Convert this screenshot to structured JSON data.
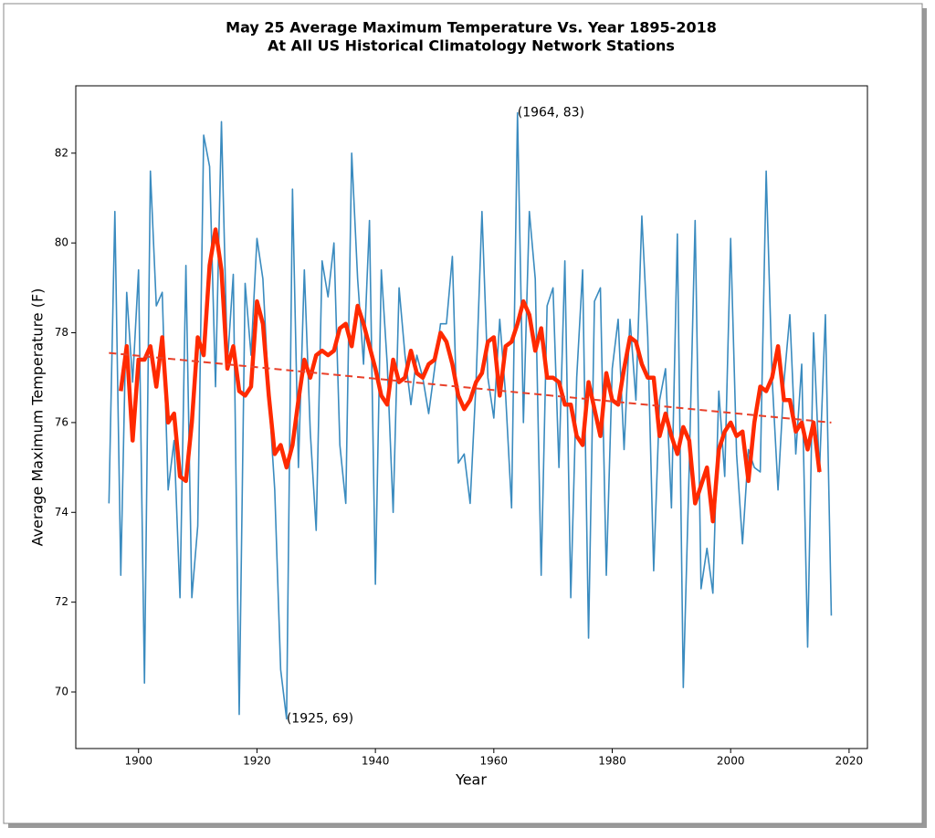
{
  "chart_data": {
    "type": "line",
    "title": "May 25 Average Maximum Temperature Vs. Year 1895-2018",
    "subtitle": "At All US Historical Climatology Network Stations",
    "x_label": "Year",
    "y_label": "Average Maximum Temperature (F)",
    "xlim": [
      1889.4,
      2023.1
    ],
    "ylim": [
      68.74,
      83.5
    ],
    "xticks": [
      1900,
      1920,
      1940,
      1960,
      1980,
      2000,
      2020
    ],
    "yticks": [
      70,
      72,
      74,
      76,
      78,
      80,
      82
    ],
    "grid": false,
    "x": [
      1895,
      1896,
      1897,
      1898,
      1899,
      1900,
      1901,
      1902,
      1903,
      1904,
      1905,
      1906,
      1907,
      1908,
      1909,
      1910,
      1911,
      1912,
      1913,
      1914,
      1915,
      1916,
      1917,
      1918,
      1919,
      1920,
      1921,
      1922,
      1923,
      1924,
      1925,
      1926,
      1927,
      1928,
      1929,
      1930,
      1931,
      1932,
      1933,
      1934,
      1935,
      1936,
      1937,
      1938,
      1939,
      1940,
      1941,
      1942,
      1943,
      1944,
      1945,
      1946,
      1947,
      1948,
      1949,
      1950,
      1951,
      1952,
      1953,
      1954,
      1955,
      1956,
      1957,
      1958,
      1959,
      1960,
      1961,
      1962,
      1963,
      1964,
      1965,
      1966,
      1967,
      1968,
      1969,
      1970,
      1971,
      1972,
      1973,
      1974,
      1975,
      1976,
      1977,
      1978,
      1979,
      1980,
      1981,
      1982,
      1983,
      1984,
      1985,
      1986,
      1987,
      1988,
      1989,
      1990,
      1991,
      1992,
      1993,
      1994,
      1995,
      1996,
      1997,
      1998,
      1999,
      2000,
      2001,
      2002,
      2003,
      2004,
      2005,
      2006,
      2007,
      2008,
      2009,
      2010,
      2011,
      2012,
      2013,
      2014,
      2015,
      2016,
      2017
    ],
    "series": [
      {
        "color": "#3a8bbf",
        "width": 1.6,
        "dashed": false,
        "values": [
          74.2,
          80.7,
          72.6,
          78.9,
          76.9,
          79.4,
          70.2,
          81.6,
          78.6,
          78.9,
          74.5,
          75.6,
          72.1,
          79.5,
          72.1,
          73.7,
          82.4,
          81.7,
          76.8,
          82.7,
          77.3,
          79.3,
          69.5,
          79.1,
          77.5,
          80.1,
          79.2,
          76.6,
          74.5,
          70.5,
          69.4,
          81.2,
          75.0,
          79.4,
          75.8,
          73.6,
          79.6,
          78.8,
          80.0,
          75.5,
          74.2,
          82.0,
          79.2,
          77.3,
          80.5,
          72.4,
          79.4,
          77.3,
          74.0,
          79.0,
          77.5,
          76.4,
          77.5,
          77.0,
          76.2,
          77.2,
          78.2,
          78.2,
          79.7,
          75.1,
          75.3,
          74.2,
          76.9,
          80.7,
          77.0,
          76.1,
          78.3,
          76.6,
          74.1,
          82.9,
          76.0,
          80.7,
          79.2,
          72.6,
          78.6,
          79.0,
          75.0,
          79.6,
          72.1,
          77.0,
          79.4,
          71.2,
          78.7,
          79.0,
          72.6,
          77.2,
          78.3,
          75.4,
          78.3,
          76.5,
          80.6,
          77.9,
          72.7,
          76.5,
          77.2,
          74.1,
          80.2,
          70.1,
          75.0,
          80.5,
          72.3,
          73.2,
          72.2,
          76.7,
          74.8,
          80.1,
          75.3,
          73.3,
          75.4,
          75.0,
          74.9,
          81.6,
          77.0,
          74.5,
          76.9,
          78.4,
          75.3,
          77.3,
          71.0,
          78.0,
          74.9,
          78.4,
          71.7
        ]
      },
      {
        "color": "#ff2a00",
        "width": 4.5,
        "dashed": false,
        "values": [
          null,
          null,
          76.7,
          77.7,
          75.6,
          77.4,
          77.4,
          77.7,
          76.8,
          77.9,
          76.0,
          76.2,
          74.8,
          74.7,
          76.0,
          77.9,
          77.5,
          79.5,
          80.3,
          79.4,
          77.2,
          77.7,
          76.7,
          76.6,
          76.8,
          78.7,
          78.2,
          76.6,
          75.3,
          75.5,
          75.0,
          75.5,
          76.5,
          77.4,
          77.0,
          77.5,
          77.6,
          77.5,
          77.6,
          78.1,
          78.2,
          77.7,
          78.6,
          78.2,
          77.7,
          77.2,
          76.6,
          76.4,
          77.4,
          76.9,
          77.0,
          77.6,
          77.1,
          77.0,
          77.3,
          77.4,
          78.0,
          77.8,
          77.3,
          76.6,
          76.3,
          76.5,
          76.9,
          77.1,
          77.8,
          77.9,
          76.6,
          77.7,
          77.8,
          78.2,
          78.7,
          78.4,
          77.6,
          78.1,
          77.0,
          77.0,
          76.9,
          76.4,
          76.4,
          75.7,
          75.5,
          76.9,
          76.3,
          75.7,
          77.1,
          76.5,
          76.4,
          77.2,
          77.9,
          77.8,
          77.3,
          77.0,
          77.0,
          75.7,
          76.2,
          75.7,
          75.3,
          75.9,
          75.6,
          74.2,
          74.6,
          75.0,
          73.8,
          75.4,
          75.8,
          76.0,
          75.7,
          75.8,
          74.7,
          76.0,
          76.8,
          76.7,
          77.0,
          77.7,
          76.5,
          76.5,
          75.8,
          76.0,
          75.4,
          76.0,
          74.9,
          null,
          null
        ]
      },
      {
        "color": "#e8402a",
        "width": 2,
        "dashed": true,
        "x": [
          1895,
          2017
        ],
        "values": [
          77.55,
          76.0
        ]
      }
    ],
    "annotations": [
      {
        "text": "(1964, 83)",
        "x": 1964,
        "y": 82.9
      },
      {
        "text": "(1925, 69)",
        "x": 1925,
        "y": 69.4
      }
    ]
  }
}
